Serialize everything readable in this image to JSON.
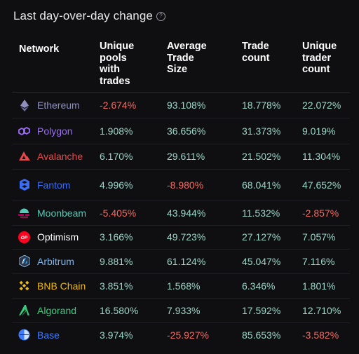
{
  "title": "Last day-over-day change",
  "headers": {
    "network": "Network",
    "col1": [
      "Unique",
      "pools",
      "with",
      "trades"
    ],
    "col2": [
      "Average",
      "Trade",
      "Size"
    ],
    "col3": [
      "Trade",
      "count"
    ],
    "col4": [
      "Unique",
      "trader",
      "count"
    ]
  },
  "colors": {
    "positive": "#9bd7c6",
    "negative": "#f26b63",
    "background": "#0f0f12"
  },
  "rows": [
    {
      "network": "Ethereum",
      "icon": "ethereum-icon",
      "name_color": "#8e8fbf",
      "values": [
        "-2.674%",
        "93.108%",
        "18.778%",
        "22.072%"
      ]
    },
    {
      "network": "Polygon",
      "icon": "polygon-icon",
      "name_color": "#9d6bff",
      "values": [
        "1.908%",
        "36.656%",
        "31.373%",
        "9.019%"
      ]
    },
    {
      "network": "Avalanche",
      "icon": "avalanche-icon",
      "name_color": "#e8484a",
      "values": [
        "6.170%",
        "29.611%",
        "21.502%",
        "11.304%"
      ]
    },
    {
      "network": "Fantom",
      "icon": "fantom-icon",
      "name_color": "#3c6cf2",
      "values": [
        "4.996%",
        "-8.980%",
        "68.041%",
        "47.652%"
      ]
    },
    {
      "network": "Moonbeam",
      "icon": "moonbeam-icon",
      "name_color": "#58c9b6",
      "values": [
        "-5.405%",
        "43.944%",
        "11.532%",
        "-2.857%"
      ]
    },
    {
      "network": "Optimism",
      "icon": "optimism-icon",
      "name_color": "#ffffff",
      "values": [
        "3.166%",
        "49.723%",
        "27.127%",
        "7.057%"
      ]
    },
    {
      "network": "Arbitrum",
      "icon": "arbitrum-icon",
      "name_color": "#7ab2e8",
      "values": [
        "9.881%",
        "61.124%",
        "45.047%",
        "7.116%"
      ]
    },
    {
      "network": "BNB Chain",
      "icon": "bnb-chain-icon",
      "name_color": "#f0b90b",
      "values": [
        "3.851%",
        "1.568%",
        "6.346%",
        "1.801%"
      ]
    },
    {
      "network": "Algorand",
      "icon": "algorand-icon",
      "name_color": "#38c97b",
      "values": [
        "16.580%",
        "7.933%",
        "17.592%",
        "12.710%"
      ]
    },
    {
      "network": "Base",
      "icon": "base-icon",
      "name_color": "#3f7cff",
      "values": [
        "3.974%",
        "-25.927%",
        "85.653%",
        "-3.582%"
      ]
    }
  ]
}
